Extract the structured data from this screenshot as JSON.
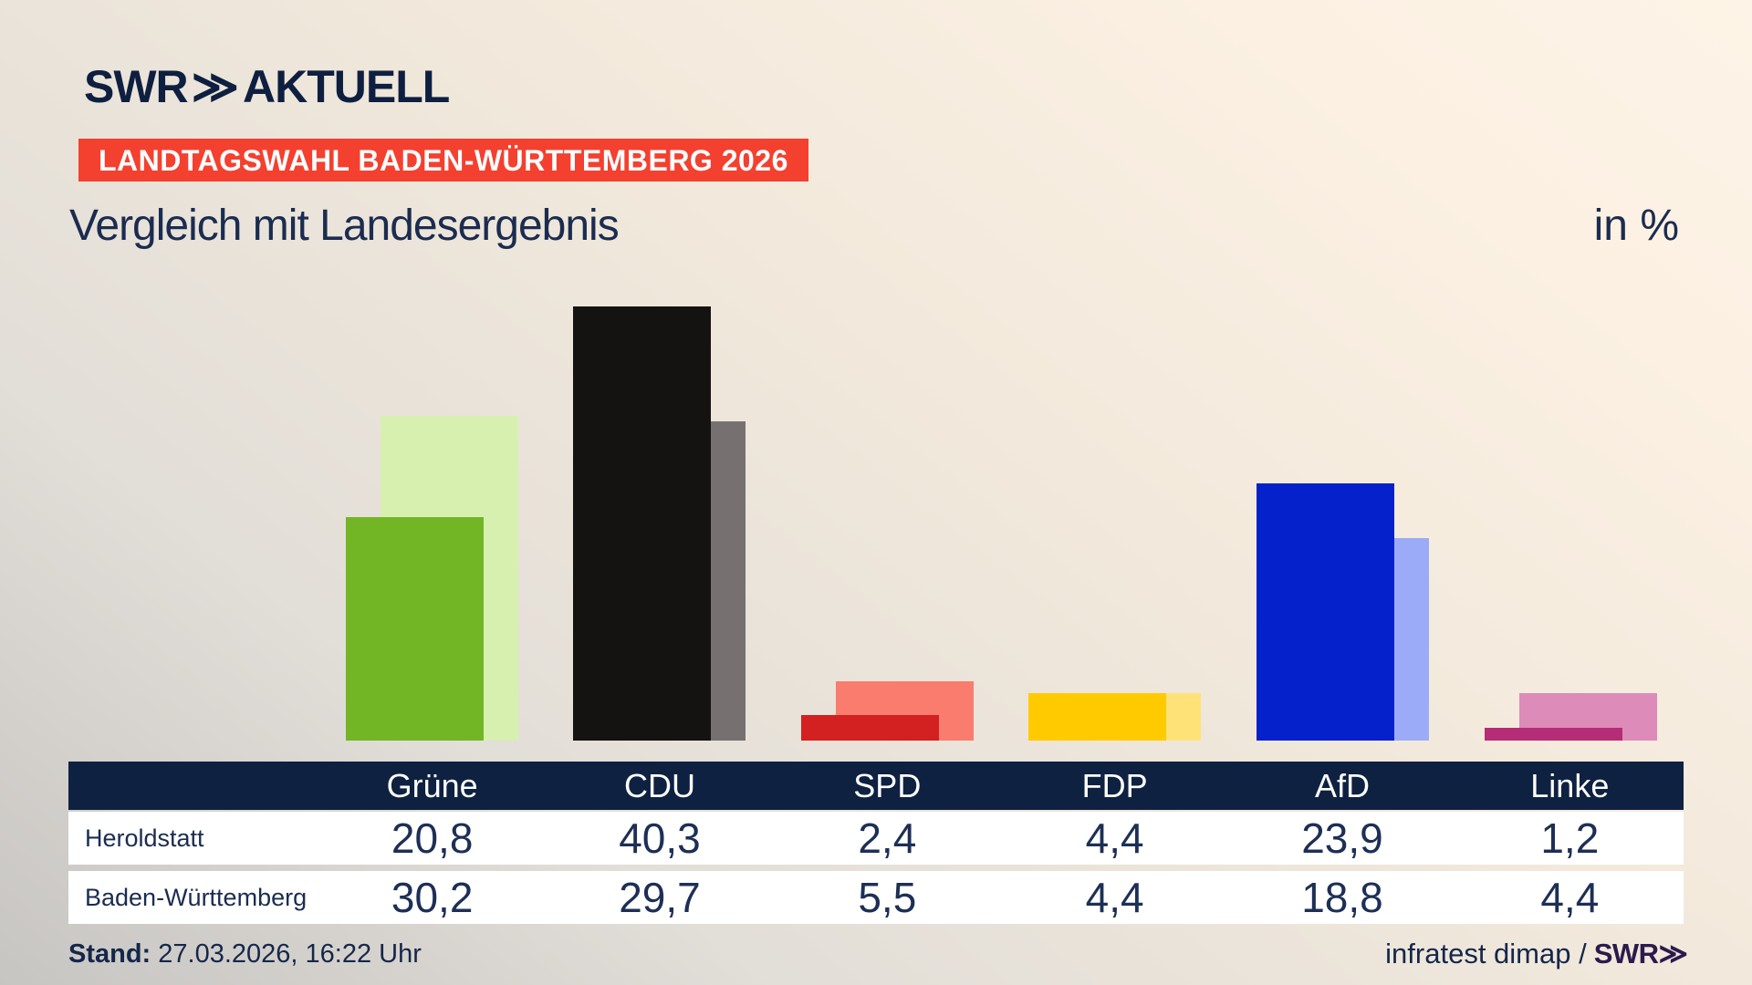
{
  "header": {
    "logo": {
      "brand": "SWR",
      "chevron": "≫",
      "product": "AKTUELL"
    },
    "badge": {
      "label": "LANDTAGSWAHL BADEN-WÜRTTEMBERG 2026",
      "bg": "#f4402f",
      "fg": "#ffffff"
    },
    "title": "Vergleich mit Landesergebnis",
    "unit_label": "in %"
  },
  "chart_data": {
    "type": "bar",
    "unit": "%",
    "title": "Vergleich mit Landesergebnis",
    "categories": [
      "Grüne",
      "CDU",
      "SPD",
      "FDP",
      "AfD",
      "Linke"
    ],
    "series": [
      {
        "name": "Heroldstatt",
        "values": [
          20.8,
          40.3,
          2.4,
          4.4,
          23.9,
          1.2
        ],
        "colors": [
          "#72b626",
          "#141312",
          "#d32020",
          "#ffcb00",
          "#0521cb",
          "#b52d77"
        ]
      },
      {
        "name": "Baden-Württemberg",
        "values": [
          30.2,
          29.7,
          5.5,
          4.4,
          18.8,
          4.4
        ],
        "colors": [
          "#d7f0af",
          "#767170",
          "#f97c6e",
          "#fee278",
          "#9cabf8",
          "#dd8bb9"
        ]
      }
    ],
    "ylim": [
      0,
      44
    ],
    "grid": false,
    "legend": "table-below",
    "value_format": "decimal-comma"
  },
  "footer": {
    "stand_label": "Stand:",
    "stand_value": " 27.03.2026, 16:22 Uhr",
    "source_text": "infratest dimap /",
    "source_brand": "SWR",
    "source_brand_chevron": "≫"
  },
  "theme": {
    "navy": "#16294d",
    "table_header_bg": "#0e2140",
    "row_bg": "#ffffff",
    "badge_red": "#f4402f",
    "brand_purple": "#2c1a4d"
  }
}
